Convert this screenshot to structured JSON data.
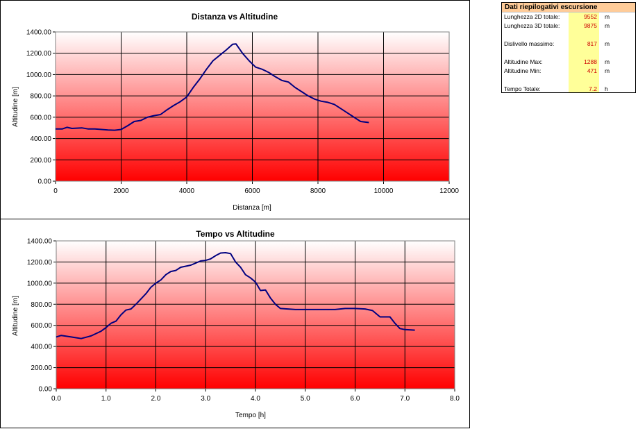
{
  "colors": {
    "line": "#000080",
    "grad_top": "#ffffff",
    "grad_bottom": "#ff0000",
    "header_bg": "#ffcc99",
    "value_bg": "#ffff99",
    "value_text": "#cc0000"
  },
  "summary": {
    "title": "Dati riepilogativi escursione",
    "rows": [
      {
        "label": "Lunghezza 2D totale:",
        "value": "9552",
        "unit": "m"
      },
      {
        "label": "Lunghezza 3D totale:",
        "value": "9875",
        "unit": "m"
      },
      {
        "label": "Dislivello massimo:",
        "value": "817",
        "unit": "m"
      },
      {
        "label": "Altitudine Max:",
        "value": "1288",
        "unit": "m"
      },
      {
        "label": "Altitudine Min:",
        "value": "471",
        "unit": "m"
      },
      {
        "label": "Tempo Totale:",
        "value": "7.2",
        "unit": "h"
      }
    ]
  },
  "chart_data": [
    {
      "type": "line",
      "title": "Distanza vs Altitudine",
      "xlabel": "Distanza [m]",
      "ylabel": "Altitudine [m]",
      "xlim": [
        0,
        12000
      ],
      "ylim": [
        0,
        1400
      ],
      "xticks": [
        "0",
        "2000",
        "4000",
        "6000",
        "8000",
        "10000",
        "12000"
      ],
      "yticks": [
        "0.00",
        "200.00",
        "400.00",
        "600.00",
        "800.00",
        "1000.00",
        "1200.00",
        "1400.00"
      ],
      "grid": true,
      "series": [
        {
          "x": [
            0,
            200,
            350,
            500,
            800,
            1000,
            1200,
            1400,
            1600,
            1800,
            2000,
            2200,
            2400,
            2600,
            2800,
            3000,
            3200,
            3400,
            3600,
            3800,
            4000,
            4200,
            4400,
            4600,
            4800,
            5000,
            5200,
            5400,
            5500,
            5700,
            5900,
            6100,
            6300,
            6500,
            6700,
            6900,
            7100,
            7300,
            7500,
            7700,
            7900,
            8100,
            8300,
            8500,
            8700,
            8900,
            9100,
            9300,
            9552
          ],
          "y": [
            490,
            490,
            505,
            495,
            500,
            490,
            490,
            485,
            480,
            478,
            485,
            520,
            560,
            570,
            600,
            615,
            625,
            670,
            710,
            745,
            790,
            880,
            960,
            1050,
            1130,
            1180,
            1230,
            1285,
            1288,
            1200,
            1130,
            1070,
            1050,
            1020,
            980,
            945,
            930,
            880,
            840,
            800,
            770,
            750,
            740,
            720,
            680,
            640,
            600,
            560,
            550
          ]
        }
      ]
    },
    {
      "type": "line",
      "title": "Tempo vs Altitudine",
      "xlabel": "Tempo [h]",
      "ylabel": "Altitudine [m]",
      "xlim": [
        0,
        8
      ],
      "ylim": [
        0,
        1400
      ],
      "xticks": [
        "0.0",
        "1.0",
        "2.0",
        "3.0",
        "4.0",
        "5.0",
        "6.0",
        "7.0",
        "8.0"
      ],
      "yticks": [
        "0.00",
        "200.00",
        "400.00",
        "600.00",
        "800.00",
        "1000.00",
        "1200.00",
        "1400.00"
      ],
      "grid": true,
      "series": [
        {
          "x": [
            0,
            0.1,
            0.3,
            0.5,
            0.7,
            0.9,
            1.0,
            1.1,
            1.2,
            1.3,
            1.4,
            1.5,
            1.6,
            1.7,
            1.8,
            1.9,
            2.0,
            2.1,
            2.2,
            2.3,
            2.4,
            2.5,
            2.6,
            2.7,
            2.8,
            2.9,
            3.0,
            3.1,
            3.2,
            3.3,
            3.4,
            3.5,
            3.6,
            3.7,
            3.8,
            3.9,
            4.0,
            4.1,
            4.2,
            4.3,
            4.4,
            4.5,
            4.8,
            5.2,
            5.6,
            5.8,
            6.0,
            6.2,
            6.35,
            6.5,
            6.7,
            6.8,
            6.9,
            7.0,
            7.2
          ],
          "y": [
            490,
            505,
            490,
            475,
            500,
            545,
            580,
            620,
            640,
            700,
            745,
            755,
            800,
            850,
            900,
            960,
            1000,
            1030,
            1080,
            1110,
            1120,
            1150,
            1160,
            1170,
            1190,
            1210,
            1215,
            1230,
            1260,
            1285,
            1288,
            1280,
            1200,
            1150,
            1080,
            1050,
            1010,
            930,
            935,
            860,
            800,
            760,
            750,
            750,
            750,
            760,
            760,
            755,
            740,
            680,
            680,
            620,
            570,
            560,
            555
          ]
        }
      ]
    }
  ]
}
